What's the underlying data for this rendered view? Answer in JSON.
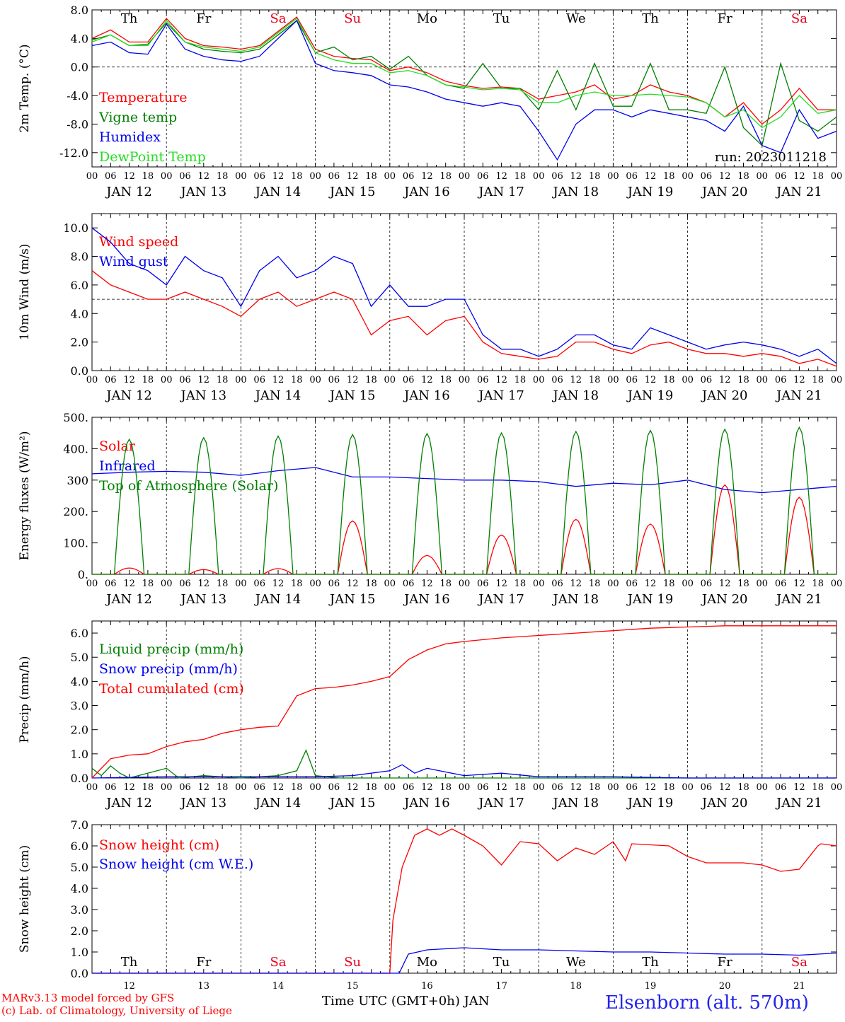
{
  "days": [
    "JAN 12",
    "JAN 13",
    "JAN 14",
    "JAN 15",
    "JAN 16",
    "JAN 17",
    "JAN 18",
    "JAN 19",
    "JAN 20",
    "JAN 21"
  ],
  "weekdays": [
    {
      "label": "Th",
      "color": "#000000"
    },
    {
      "label": "Fr",
      "color": "#000000"
    },
    {
      "label": "Sa",
      "color": "#e8001c"
    },
    {
      "label": "Su",
      "color": "#e8001c"
    },
    {
      "label": "Mo",
      "color": "#000000"
    },
    {
      "label": "Tu",
      "color": "#000000"
    },
    {
      "label": "We",
      "color": "#000000"
    },
    {
      "label": "Th",
      "color": "#000000"
    },
    {
      "label": "Fr",
      "color": "#000000"
    },
    {
      "label": "Sa",
      "color": "#e8001c"
    }
  ],
  "hour_ticks": [
    "00",
    "06",
    "12",
    "18"
  ],
  "last_tick": "00",
  "footer": {
    "model": "MARv3.13 model forced by GFS",
    "copyright": "(c) Lab. of Climatology, University of Liege",
    "xlabel": "Time UTC (GMT+0h) JAN",
    "station": "Elsenborn (alt. 570m)"
  },
  "colors": {
    "red": "#ff0000",
    "green": "#008000",
    "blue": "#0000ee",
    "lightgreen": "#22dd22",
    "station": "#2222ee",
    "axis": "#000000"
  },
  "chart_data": [
    {
      "type": "line",
      "ylabel": "2m Temp. (°C)",
      "ylim": [
        -14,
        8
      ],
      "yticks": [
        8.0,
        4.0,
        0.0,
        -4.0,
        -8.0,
        -12.0
      ],
      "ytick_labels": [
        "8.0",
        "4.0",
        "0.0",
        "-4.0",
        "-8.0",
        "-12.0"
      ],
      "zero_line": 0,
      "annotation": "run: 2023011218",
      "x_unit": "hours since JAN 12 00 UTC",
      "series": [
        {
          "name": "Temperature",
          "color": "#ff0000",
          "x": [
            0,
            6,
            12,
            18,
            24,
            30,
            36,
            42,
            48,
            54,
            60,
            66,
            72,
            78,
            84,
            90,
            96,
            102,
            108,
            114,
            120,
            126,
            132,
            138,
            144,
            150,
            156,
            162,
            168,
            174,
            180,
            186,
            192,
            198,
            204,
            210,
            216,
            222,
            228,
            234,
            240
          ],
          "y": [
            4.0,
            5.2,
            3.5,
            3.5,
            6.8,
            4.0,
            3.0,
            2.8,
            2.5,
            3.0,
            5.0,
            7.0,
            2.5,
            1.5,
            1.2,
            1.0,
            -0.5,
            0.0,
            -0.8,
            -2.0,
            -2.6,
            -3.0,
            -2.8,
            -3.0,
            -4.5,
            -4.0,
            -3.5,
            -2.5,
            -4.5,
            -4.0,
            -2.5,
            -3.5,
            -4.0,
            -5.0,
            -7.0,
            -5.0,
            -8.0,
            -6.0,
            -3.0,
            -6.0,
            -6.0
          ]
        },
        {
          "name": "Vigne temp",
          "color": "#008000",
          "x": [
            0,
            6,
            12,
            18,
            24,
            30,
            36,
            42,
            48,
            54,
            60,
            66,
            72,
            78,
            84,
            90,
            96,
            102,
            108,
            114,
            120,
            126,
            132,
            138,
            144,
            150,
            156,
            162,
            168,
            174,
            180,
            186,
            192,
            198,
            204,
            210,
            216,
            222,
            228,
            234,
            240
          ],
          "y": [
            3.8,
            4.5,
            3.0,
            3.2,
            6.2,
            3.5,
            2.5,
            2.2,
            2.0,
            2.5,
            4.5,
            6.5,
            2.0,
            2.8,
            1.0,
            1.5,
            -0.3,
            1.5,
            -1.2,
            -2.5,
            -3.0,
            0.5,
            -3.0,
            -3.0,
            -6.0,
            -0.5,
            -6.0,
            0.5,
            -5.5,
            -5.5,
            0.5,
            -6.0,
            -6.0,
            -6.5,
            0.0,
            -8.5,
            -11.0,
            0.5,
            -7.5,
            -9.0,
            -7.0
          ]
        },
        {
          "name": "Humidex",
          "color": "#0000ee",
          "x": [
            0,
            6,
            12,
            18,
            24,
            30,
            36,
            42,
            48,
            54,
            60,
            66,
            72,
            78,
            84,
            90,
            96,
            102,
            108,
            114,
            120,
            126,
            132,
            138,
            144,
            150,
            156,
            162,
            168,
            174,
            180,
            186,
            192,
            198,
            204,
            210,
            216,
            222,
            228,
            234,
            240
          ],
          "y": [
            3.0,
            3.5,
            2.0,
            1.8,
            6.0,
            2.5,
            1.5,
            1.0,
            0.8,
            1.5,
            4.0,
            6.5,
            0.5,
            -0.5,
            -0.8,
            -1.2,
            -2.5,
            -2.8,
            -3.5,
            -4.5,
            -5.0,
            -5.5,
            -5.0,
            -5.5,
            -9.0,
            -13.0,
            -8.0,
            -6.0,
            -6.0,
            -7.0,
            -6.0,
            -6.5,
            -7.0,
            -7.5,
            -9.0,
            -5.5,
            -11.0,
            -12.0,
            -6.0,
            -10.0,
            -9.0
          ]
        },
        {
          "name": "DewPoint Temp",
          "color": "#22dd22",
          "x": [
            0,
            6,
            12,
            18,
            24,
            30,
            36,
            42,
            48,
            54,
            60,
            66,
            72,
            78,
            84,
            90,
            96,
            102,
            108,
            114,
            120,
            126,
            132,
            138,
            144,
            150,
            156,
            162,
            168,
            174,
            180,
            186,
            192,
            198,
            204,
            210,
            216,
            222,
            228,
            234,
            240
          ],
          "y": [
            3.5,
            4.5,
            3.0,
            3.0,
            6.5,
            3.5,
            2.8,
            2.5,
            2.2,
            2.8,
            4.8,
            6.8,
            2.0,
            1.0,
            0.5,
            0.5,
            -0.8,
            -0.5,
            -1.2,
            -2.5,
            -2.8,
            -3.2,
            -3.0,
            -3.2,
            -5.0,
            -5.0,
            -4.0,
            -3.5,
            -4.0,
            -4.0,
            -3.8,
            -4.0,
            -4.2,
            -5.0,
            -7.0,
            -6.0,
            -8.5,
            -7.0,
            -4.0,
            -6.5,
            -6.0
          ]
        }
      ]
    },
    {
      "type": "line",
      "ylabel": "10m Wind (m/s)",
      "ylim": [
        0,
        11
      ],
      "yticks": [
        10,
        8,
        6,
        4,
        2,
        0
      ],
      "ytick_labels": [
        "10.0",
        "8.0",
        "6.0",
        "4.0",
        "2.0",
        "0.0"
      ],
      "zero_line": 5,
      "x_unit": "hours since JAN 12 00 UTC",
      "series": [
        {
          "name": "Wind speed",
          "color": "#ff0000",
          "x": [
            0,
            6,
            12,
            18,
            24,
            30,
            36,
            42,
            48,
            54,
            60,
            66,
            72,
            78,
            84,
            90,
            96,
            102,
            108,
            114,
            120,
            126,
            132,
            138,
            144,
            150,
            156,
            162,
            168,
            174,
            180,
            186,
            192,
            198,
            204,
            210,
            216,
            222,
            228,
            234,
            240
          ],
          "y": [
            7.0,
            6.0,
            5.5,
            5.0,
            5.0,
            5.5,
            5.0,
            4.5,
            3.8,
            5.0,
            5.5,
            4.5,
            5.0,
            5.5,
            5.0,
            2.5,
            3.5,
            3.8,
            2.5,
            3.5,
            3.8,
            2.0,
            1.2,
            1.0,
            0.8,
            1.0,
            2.0,
            2.0,
            1.5,
            1.2,
            1.8,
            2.0,
            1.5,
            1.2,
            1.2,
            1.0,
            1.2,
            1.0,
            0.5,
            0.8,
            0.3
          ]
        },
        {
          "name": "Wind gust",
          "color": "#0000ee",
          "x": [
            0,
            6,
            12,
            18,
            24,
            30,
            36,
            42,
            48,
            54,
            60,
            66,
            72,
            78,
            84,
            90,
            96,
            102,
            108,
            114,
            120,
            126,
            132,
            138,
            144,
            150,
            156,
            162,
            168,
            174,
            180,
            186,
            192,
            198,
            204,
            210,
            216,
            222,
            228,
            234,
            240
          ],
          "y": [
            10.0,
            9.0,
            7.5,
            7.0,
            6.0,
            8.0,
            7.0,
            6.5,
            4.5,
            7.0,
            8.0,
            6.5,
            7.0,
            8.0,
            7.5,
            4.5,
            6.0,
            4.5,
            4.5,
            5.0,
            5.0,
            2.5,
            1.5,
            1.5,
            1.0,
            1.5,
            2.5,
            2.5,
            1.8,
            1.5,
            3.0,
            2.5,
            2.0,
            1.5,
            1.8,
            2.0,
            1.8,
            1.5,
            1.0,
            1.5,
            0.5
          ]
        }
      ]
    },
    {
      "type": "line",
      "ylabel": "Energy fluxes (W/m²)",
      "ylim": [
        0,
        500
      ],
      "yticks": [
        500,
        400,
        300,
        200,
        100,
        0
      ],
      "ytick_labels": [
        "500.",
        "400.",
        "300",
        "200.",
        "100.",
        "0."
      ],
      "x_unit": "hours since JAN 12 00 UTC",
      "series": [
        {
          "name": "Solar",
          "color": "#ff0000",
          "peaks": [
            20,
            15,
            18,
            170,
            60,
            125,
            175,
            160,
            285,
            245
          ]
        },
        {
          "name": "Infrared",
          "color": "#0000ee",
          "x": [
            0,
            12,
            24,
            36,
            48,
            60,
            72,
            84,
            96,
            108,
            120,
            132,
            144,
            156,
            168,
            180,
            192,
            204,
            216,
            228,
            240
          ],
          "y": [
            320,
            325,
            328,
            325,
            315,
            330,
            340,
            310,
            310,
            305,
            300,
            300,
            295,
            280,
            290,
            285,
            300,
            270,
            260,
            270,
            280
          ]
        },
        {
          "name": "Top of Atmosphere (Solar)",
          "color": "#008000",
          "peaks": [
            430,
            435,
            440,
            445,
            448,
            450,
            455,
            458,
            462,
            468
          ]
        }
      ]
    },
    {
      "type": "line",
      "ylabel": "Precip (mm/h)",
      "ylim": [
        0,
        6.5
      ],
      "yticks": [
        6,
        5,
        4,
        3,
        2,
        1,
        0
      ],
      "ytick_labels": [
        "6.0",
        "5.0",
        "4.0",
        "3.0",
        "2.0",
        "1.0",
        "0.0"
      ],
      "x_unit": "hours since JAN 12 00 UTC",
      "series": [
        {
          "name": "Liquid precip (mm/h)",
          "color": "#008000",
          "x": [
            0,
            3,
            6,
            9,
            12,
            24,
            28,
            36,
            48,
            60,
            66,
            69,
            72,
            80,
            96,
            120,
            144,
            168,
            192,
            216,
            240
          ],
          "y": [
            0.4,
            0.1,
            0.5,
            0.2,
            0.0,
            0.4,
            0.0,
            0.1,
            0.0,
            0.1,
            0.3,
            1.15,
            0.1,
            0.0,
            0.0,
            0.0,
            0.0,
            0.0,
            0.0,
            0.0,
            0.0
          ]
        },
        {
          "name": "Snow precip (mm/h)",
          "color": "#0000ee",
          "x": [
            0,
            24,
            48,
            72,
            84,
            96,
            100,
            104,
            108,
            112,
            120,
            132,
            144,
            168,
            192,
            216,
            240
          ],
          "y": [
            0.0,
            0.05,
            0.05,
            0.05,
            0.1,
            0.3,
            0.55,
            0.2,
            0.4,
            0.3,
            0.1,
            0.2,
            0.05,
            0.05,
            0.0,
            0.0,
            0.0
          ]
        },
        {
          "name": "Total cumulated (cm)",
          "color": "#ff0000",
          "x": [
            0,
            6,
            12,
            18,
            24,
            30,
            36,
            42,
            48,
            54,
            60,
            66,
            72,
            78,
            84,
            90,
            96,
            102,
            108,
            114,
            120,
            132,
            144,
            156,
            168,
            180,
            192,
            204,
            216,
            228,
            240
          ],
          "y": [
            0.0,
            0.8,
            0.95,
            1.0,
            1.3,
            1.5,
            1.6,
            1.85,
            2.0,
            2.1,
            2.15,
            3.4,
            3.7,
            3.75,
            3.85,
            4.0,
            4.2,
            4.9,
            5.3,
            5.55,
            5.65,
            5.8,
            5.9,
            6.0,
            6.1,
            6.2,
            6.25,
            6.3,
            6.3,
            6.3,
            6.3
          ]
        }
      ]
    },
    {
      "type": "line",
      "ylabel": "Snow height (cm)",
      "ylim": [
        0,
        7
      ],
      "yticks": [
        7,
        6,
        5,
        4,
        3,
        2,
        1,
        0
      ],
      "ytick_labels": [
        "7.0",
        "6.0",
        "5.0",
        "4.0",
        "3.0",
        "2.0",
        "1.0",
        "0.0"
      ],
      "day_numbers": [
        "12",
        "13",
        "14",
        "15",
        "16",
        "17",
        "18",
        "19",
        "20",
        "21"
      ],
      "x_unit": "hours since JAN 12 00 UTC",
      "series": [
        {
          "name": "Snow height (cm)",
          "color": "#ff0000",
          "x": [
            0,
            96,
            97,
            100,
            104,
            108,
            112,
            116,
            120,
            126,
            132,
            138,
            144,
            150,
            156,
            162,
            168,
            172,
            174,
            180,
            186,
            192,
            198,
            204,
            210,
            216,
            222,
            228,
            234,
            235,
            240
          ],
          "y": [
            0.0,
            0.0,
            2.5,
            5.0,
            6.5,
            6.8,
            6.5,
            6.8,
            6.5,
            6.0,
            5.1,
            6.2,
            6.1,
            5.3,
            5.9,
            5.6,
            6.2,
            5.3,
            6.1,
            6.05,
            6.0,
            5.5,
            5.2,
            5.2,
            5.2,
            5.1,
            4.8,
            4.9,
            6.0,
            6.1,
            6.0
          ]
        },
        {
          "name": "Snow height (cm W.E.)",
          "color": "#0000ee",
          "x": [
            0,
            99,
            102,
            108,
            120,
            132,
            144,
            156,
            168,
            180,
            192,
            204,
            216,
            228,
            240
          ],
          "y": [
            0.0,
            0.0,
            0.9,
            1.1,
            1.2,
            1.1,
            1.1,
            1.05,
            1.0,
            1.0,
            0.95,
            0.9,
            0.9,
            0.85,
            0.95
          ]
        }
      ]
    }
  ]
}
